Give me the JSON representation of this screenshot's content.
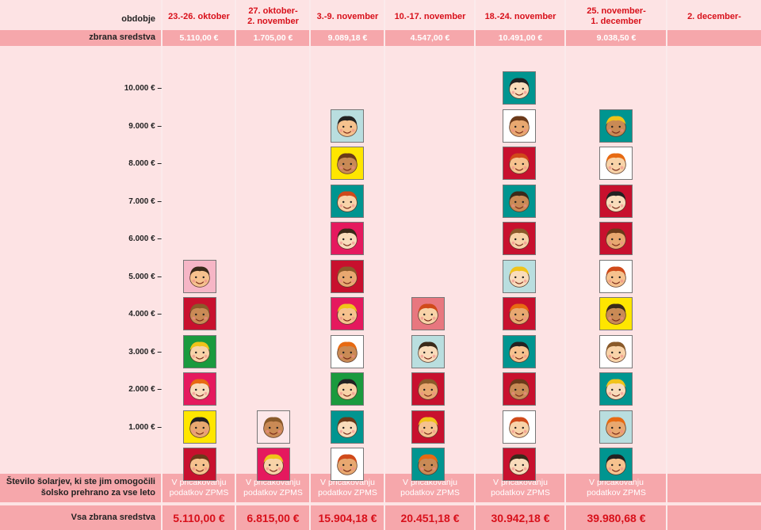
{
  "header": {
    "period_label": "obdobje",
    "collected_label": "zbrana sredstva",
    "pupils_label_1": "Število šolarjev, ki ste jim omogočili",
    "pupils_label_2": "šolsko prehrano za vse leto",
    "total_label": "Vsa zbrana sredstva"
  },
  "columns": [
    {
      "period_1": "23.-26. oktober",
      "period_2": "",
      "collected": "5.110,00 €",
      "note_1": "V pričakovanju",
      "note_2": "podatkov ZPMS",
      "total": "5.110,00 €"
    },
    {
      "period_1": "27. oktober-",
      "period_2": "2. november",
      "collected": "1.705,00 €",
      "note_1": "V pričakovanju",
      "note_2": "podatkov ZPMS",
      "total": "6.815,00 €"
    },
    {
      "period_1": "3.-9. november",
      "period_2": "",
      "collected": "9.089,18 €",
      "note_1": "V pričakovanju",
      "note_2": "podatkov ZPMS",
      "total": "15.904,18 €"
    },
    {
      "period_1": "10.-17. november",
      "period_2": "",
      "collected": "4.547,00 €",
      "note_1": "V pričakovanju",
      "note_2": "podatkov ZPMS",
      "total": "20.451,18 €"
    },
    {
      "period_1": "18.-24. november",
      "period_2": "",
      "collected": "10.491,00 €",
      "note_1": "V pričakovanju",
      "note_2": "podatkov ZPMS",
      "total": "30.942,18 €"
    },
    {
      "period_1": "25. november-",
      "period_2": "1. december",
      "collected": "9.038,50 €",
      "note_1": "V pričakovanju",
      "note_2": "podatkov ZPMS",
      "total": "39.980,68 €"
    },
    {
      "period_1": "2. december-",
      "period_2": "",
      "collected": "",
      "note_1": "",
      "note_2": "",
      "total": ""
    }
  ],
  "chart_data": {
    "type": "bar",
    "categories": [
      "23.-26. oktober",
      "27. oktober-2. november",
      "3.-9. november",
      "10.-17. november",
      "18.-24. november",
      "25. november-1. december",
      "2. december-"
    ],
    "values": [
      5110.0,
      1705.0,
      9089.18,
      4547.0,
      10491.0,
      9038.5,
      0
    ],
    "ylim": [
      0,
      11000
    ],
    "yticks": [
      "1.000 €",
      "2.000 €",
      "3.000 €",
      "4.000 €",
      "5.000 €",
      "6.000 €",
      "7.000 €",
      "8.000 €",
      "9.000 €",
      "10.000 €"
    ],
    "ytick_values": [
      1000,
      2000,
      3000,
      4000,
      5000,
      6000,
      7000,
      8000,
      9000,
      10000
    ],
    "unit_per_icon": 1000,
    "icon_colors": [
      [
        "#c8102e",
        "#ffe600",
        "#e5195e",
        "#1a9a3e",
        "#c8102e",
        "#f6b6c6"
      ],
      [
        "#e5195e",
        "#fde8ea"
      ],
      [
        "#ffffff",
        "#009590",
        "#1a9a3e",
        "#ffffff",
        "#e5195e",
        "#c8102e",
        "#e5195e",
        "#009590",
        "#ffe600",
        "#b9dedf"
      ],
      [
        "#009590",
        "#c8102e",
        "#c8102e",
        "#b9dedf",
        "#e8777f"
      ],
      [
        "#c8102e",
        "#ffffff",
        "#c8102e",
        "#009590",
        "#c8102e",
        "#b9dedf",
        "#c8102e",
        "#009590",
        "#c8102e",
        "#ffffff",
        "#009590"
      ],
      [
        "#009590",
        "#b9dedf",
        "#009590",
        "#ffffff",
        "#ffe600",
        "#ffffff",
        "#c8102e",
        "#c8102e",
        "#ffffff",
        "#009590"
      ]
    ]
  }
}
